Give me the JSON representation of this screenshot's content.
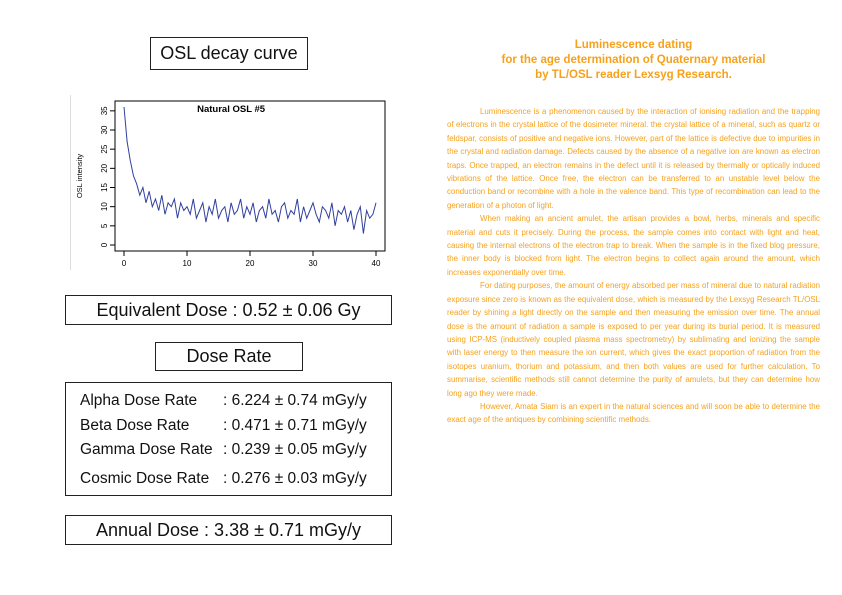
{
  "left": {
    "title": "OSL decay curve",
    "equivalent_dose": "Equivalent Dose : 0.52 ± 0.06 Gy",
    "dose_rate_title": "Dose Rate",
    "dose_rates": [
      {
        "label": "Alpha Dose Rate",
        "value": ": 6.224 ± 0.74 mGy/y"
      },
      {
        "label": "Beta Dose Rate",
        "value": ": 0.471 ± 0.71 mGy/y"
      },
      {
        "label": "Gamma Dose Rate",
        "value": ": 0.239 ± 0.05 mGy/y"
      },
      {
        "label": "Cosmic Dose Rate",
        "value": ": 0.276 ± 0.03 mGy/y"
      }
    ],
    "annual_dose": "Annual Dose : 3.38 ± 0.71 mGy/y"
  },
  "chart_data": {
    "type": "line",
    "title": "Natural OSL #5",
    "xlabel": "",
    "ylabel": "OSL intensity",
    "xlim": [
      0,
      40
    ],
    "ylim": [
      0,
      36
    ],
    "xticks": [
      0,
      10,
      20,
      30,
      40
    ],
    "yticks": [
      0,
      5,
      10,
      15,
      20,
      25,
      30,
      35
    ],
    "grid": false,
    "color": "#2f3f9e",
    "x": [
      0,
      0.5,
      1,
      1.5,
      2,
      2.5,
      3,
      3.5,
      4,
      4.5,
      5,
      5.5,
      6,
      6.5,
      7,
      7.5,
      8,
      8.5,
      9,
      9.5,
      10,
      10.5,
      11,
      11.5,
      12,
      12.5,
      13,
      13.5,
      14,
      14.5,
      15,
      15.5,
      16,
      16.5,
      17,
      17.5,
      18,
      18.5,
      19,
      19.5,
      20,
      20.5,
      21,
      21.5,
      22,
      22.5,
      23,
      23.5,
      24,
      24.5,
      25,
      25.5,
      26,
      26.5,
      27,
      27.5,
      28,
      28.5,
      29,
      29.5,
      30,
      30.5,
      31,
      31.5,
      32,
      32.5,
      33,
      33.5,
      34,
      34.5,
      35,
      35.5,
      36,
      36.5,
      37,
      37.5,
      38,
      38.5,
      39,
      39.5,
      40
    ],
    "y": [
      36,
      27,
      22,
      18,
      16,
      13,
      15,
      11,
      14,
      10,
      12,
      9,
      13,
      8,
      11,
      10,
      12,
      7,
      11,
      9,
      10,
      8,
      12,
      7,
      9,
      11,
      6,
      10,
      8,
      12,
      7,
      9,
      10,
      6,
      11,
      8,
      9,
      12,
      7,
      10,
      8,
      11,
      6,
      9,
      10,
      7,
      12,
      8,
      9,
      6,
      10,
      11,
      7,
      9,
      8,
      12,
      6,
      10,
      7,
      9,
      11,
      8,
      6,
      10,
      9,
      7,
      11,
      5,
      9,
      8,
      10,
      6,
      9,
      4,
      8,
      10,
      3,
      9,
      7,
      8,
      11
    ]
  },
  "right": {
    "title_lines": [
      "Luminescence dating",
      "for the age determination of Quaternary material",
      "by TL/OSL reader Lexsyg Research."
    ],
    "paragraphs": [
      "Luminescence is a phenomenon caused by the interaction of ionising radiation and the trapping of electrons in the crystal lattice of the dosimeter mineral. the crystal lattice of a mineral, such as quartz or feldspar, consists of positive and negative ions. However, part of the lattice is defective due to impurities in the crystal and radiation damage. Defects caused by the absence of a negative ion are known as electron traps. Once trapped, an electron remains in the defect until it is released by thermally or optically induced vibrations of the lattice. Once free, the electron can be transferred to an unstable level below the conduction band or recombine with a hole in the valence band. This type of recombination can lead to the generation of a photon of light.",
      "When making an ancient amulet, the artisan provides a bowl, herbs, minerals and specific material and cuts it precisely. During the process, the sample comes into contact with light and heat, causing the internal electrons of the electron trap to break. When the sample is in the fixed blog pressure, the inner body is blocked from light. The electron begins to collect again around the amount, which increases exponentially over time.",
      "For dating purposes, the amount of energy absorbed per mass of mineral due to natural radiation exposure since zero is known as the equivalent dose, which is measured by the Lexsyg Research TL/OSL reader by shining a light directly on the sample and then measuring the emission over time. The annual dose is the amount of radiation a sample is exposed to per year during its burial period. It is measured using ICP-MS (inductively coupled plasma mass spectrometry) by sublimating and ionizing the sample with laser energy to then measure the ion current, which gives the exact proportion of radiation from the isotopes uranium, thorium and potassium, and then both values are used for further calculation. To summarise, scientific methods still cannot determine the purity of amulets, but they can determine how long ago they were made.",
      "However, Amata Siam is an expert in the natural sciences and will soon be able to determine the exact age of the antiques by combining scientific methods."
    ]
  }
}
